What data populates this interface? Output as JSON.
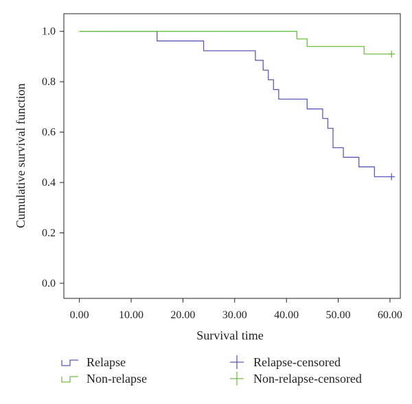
{
  "chart_data": {
    "type": "line",
    "title": "",
    "xlabel": "Survival time",
    "ylabel": "Cumulative survival function",
    "xlim": [
      -3,
      62
    ],
    "ylim": [
      -0.06,
      1.07
    ],
    "x_ticks": [
      0,
      10,
      20,
      30,
      40,
      50,
      60
    ],
    "x_tick_labels": [
      "0.00",
      "10.00",
      "20.00",
      "30.00",
      "40.00",
      "50.00",
      "60.00"
    ],
    "y_ticks": [
      0.0,
      0.2,
      0.4,
      0.6,
      0.8,
      1.0
    ],
    "y_tick_labels": [
      "0.0",
      "0.2",
      "0.4",
      "0.6",
      "0.8",
      "1.0"
    ],
    "grid": false,
    "legend_position": "bottom",
    "series": [
      {
        "name": "Relapse",
        "color": "#5b5bb5",
        "step": true,
        "x": [
          0,
          15,
          24,
          34,
          35.5,
          36.5,
          37.5,
          38.5,
          44,
          47,
          48,
          49,
          51,
          54,
          57,
          60.3
        ],
        "y": [
          1.0,
          0.962,
          0.923,
          0.885,
          0.846,
          0.808,
          0.769,
          0.731,
          0.692,
          0.654,
          0.615,
          0.538,
          0.5,
          0.462,
          0.423,
          0.423
        ]
      },
      {
        "name": "Non-relapse",
        "color": "#6fbe44",
        "step": true,
        "x": [
          0,
          42,
          43,
          44,
          51,
          55,
          60.3
        ],
        "y": [
          1.0,
          0.97,
          0.97,
          0.94,
          0.94,
          0.91,
          0.91
        ]
      }
    ],
    "censored": [
      {
        "name": "Relapse-censored",
        "color": "#5b5bb5",
        "x": 60.3,
        "y": 0.423
      },
      {
        "name": "Non-relapse-censored",
        "color": "#6fbe44",
        "x": 60.3,
        "y": 0.91
      }
    ],
    "legend": [
      {
        "label": "Relapse",
        "symbol": "step",
        "color": "#5b5bb5"
      },
      {
        "label": "Relapse-censored",
        "symbol": "plus",
        "color": "#5b5bb5"
      },
      {
        "label": "Non-relapse",
        "symbol": "step",
        "color": "#6fbe44"
      },
      {
        "label": "Non-relapse-censored",
        "symbol": "plus",
        "color": "#6fbe44"
      }
    ]
  }
}
